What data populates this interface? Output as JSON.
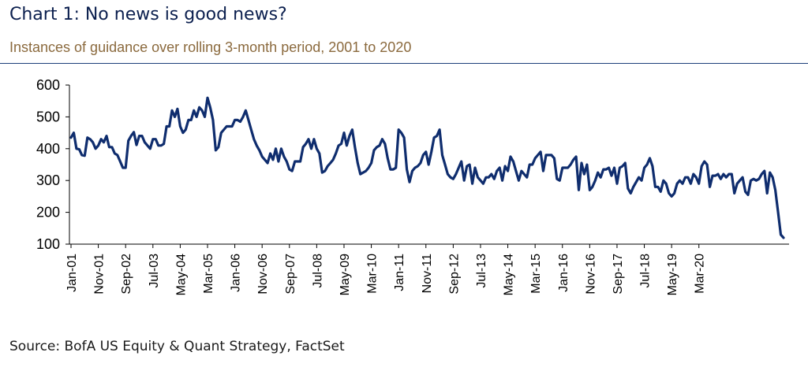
{
  "header": {
    "title": "Chart 1: No news is good news?",
    "subtitle": "Instances of guidance over rolling 3-month period, 2001 to 2020"
  },
  "footer": {
    "source": "Source: BofA US Equity & Quant Strategy, FactSet"
  },
  "colors": {
    "line": "#0f2d6e",
    "title": "#0b1f4e",
    "subtitle": "#8b6a3e",
    "rule": "#1d3f7a"
  },
  "chart_data": {
    "type": "line",
    "title": "Chart 1: No news is good news?",
    "subtitle": "Instances of guidance over rolling 3-month period, 2001 to 2020",
    "xlabel": "",
    "ylabel": "",
    "ylim": [
      100,
      600
    ],
    "yticks": [
      100,
      200,
      300,
      400,
      500,
      600
    ],
    "grid": false,
    "xticks": [
      "Jan-01",
      "Nov-01",
      "Sep-02",
      "Jul-03",
      "May-04",
      "Mar-05",
      "Jan-06",
      "Nov-06",
      "Sep-07",
      "Jul-08",
      "May-09",
      "Mar-10",
      "Jan-11",
      "Nov-11",
      "Sep-12",
      "Jul-13",
      "May-14",
      "Mar-15",
      "Jan-16",
      "Nov-16",
      "Sep-17",
      "Jul-18",
      "May-19",
      "Mar-20"
    ],
    "series": [
      {
        "name": "Instances of guidance",
        "values": [
          435,
          450,
          400,
          398,
          380,
          378,
          435,
          430,
          420,
          400,
          410,
          430,
          420,
          440,
          405,
          405,
          385,
          380,
          360,
          340,
          340,
          425,
          440,
          452,
          412,
          440,
          440,
          420,
          410,
          400,
          430,
          430,
          410,
          410,
          415,
          470,
          470,
          520,
          500,
          525,
          470,
          450,
          460,
          490,
          490,
          520,
          500,
          530,
          520,
          500,
          560,
          530,
          490,
          395,
          405,
          450,
          460,
          470,
          470,
          470,
          490,
          490,
          485,
          500,
          520,
          490,
          460,
          430,
          410,
          395,
          375,
          365,
          355,
          385,
          365,
          400,
          360,
          400,
          375,
          360,
          335,
          330,
          360,
          360,
          360,
          405,
          415,
          430,
          400,
          430,
          400,
          385,
          325,
          330,
          345,
          355,
          365,
          385,
          410,
          415,
          450,
          410,
          440,
          460,
          405,
          355,
          320,
          325,
          330,
          340,
          355,
          395,
          405,
          410,
          430,
          415,
          370,
          335,
          335,
          340,
          460,
          450,
          435,
          335,
          295,
          330,
          340,
          345,
          355,
          380,
          390,
          350,
          390,
          435,
          440,
          460,
          380,
          350,
          320,
          310,
          305,
          320,
          340,
          360,
          300,
          345,
          350,
          290,
          340,
          310,
          300,
          290,
          310,
          310,
          320,
          305,
          330,
          340,
          300,
          345,
          330,
          375,
          360,
          330,
          300,
          330,
          320,
          310,
          350,
          350,
          370,
          380,
          390,
          330,
          380,
          380,
          380,
          370,
          305,
          300,
          340,
          340,
          340,
          350,
          365,
          375,
          270,
          355,
          320,
          350,
          270,
          280,
          300,
          325,
          310,
          335,
          335,
          340,
          315,
          340,
          290,
          340,
          345,
          355,
          275,
          260,
          280,
          295,
          310,
          300,
          340,
          350,
          370,
          345,
          280,
          280,
          265,
          300,
          290,
          260,
          250,
          260,
          290,
          300,
          290,
          310,
          310,
          290,
          320,
          310,
          290,
          345,
          360,
          350,
          280,
          315,
          315,
          320,
          305,
          320,
          310,
          320,
          320,
          260,
          290,
          300,
          310,
          265,
          255,
          300,
          305,
          300,
          305,
          320,
          330,
          260,
          325,
          310,
          270,
          200,
          130,
          120
        ]
      }
    ]
  }
}
